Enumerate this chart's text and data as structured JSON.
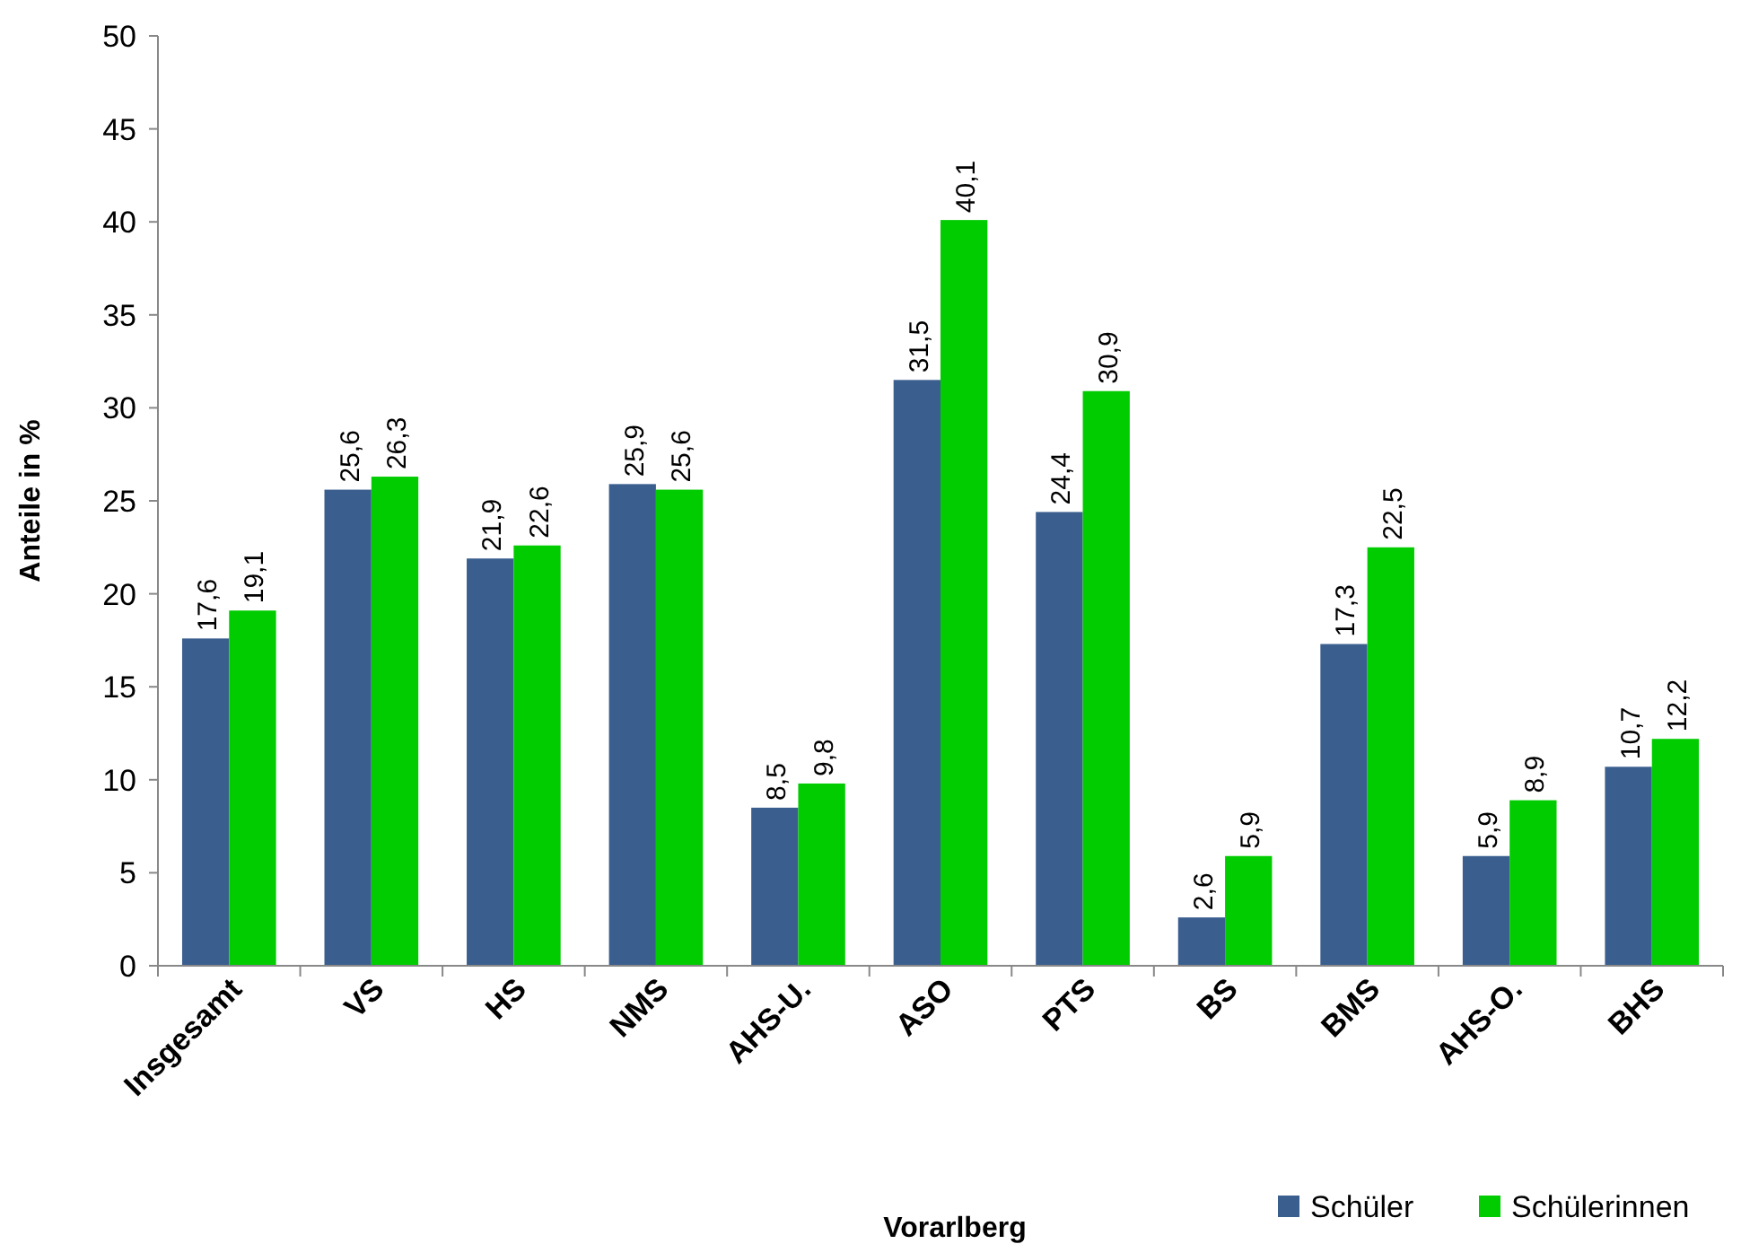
{
  "chart_data": {
    "type": "bar",
    "xlabel": "Vorarlberg",
    "ylabel": "Anteile in %",
    "categories": [
      "Insgesamt",
      "VS",
      "HS",
      "NMS",
      "AHS-U.",
      "ASO",
      "PTS",
      "BS",
      "BMS",
      "AHS-O.",
      "BHS"
    ],
    "series": [
      {
        "name": "Schüler",
        "color": "#3a5f8f",
        "values": [
          17.6,
          25.6,
          21.9,
          25.9,
          8.5,
          31.5,
          24.4,
          2.6,
          17.3,
          5.9,
          10.7
        ],
        "value_labels": [
          "17,6",
          "25,6",
          "21,9",
          "25,9",
          "8,5",
          "31,5",
          "24,4",
          "2,6",
          "17,3",
          "5,9",
          "10,7"
        ]
      },
      {
        "name": "Schülerinnen",
        "color": "#00cc00",
        "values": [
          19.1,
          26.3,
          22.6,
          25.6,
          9.8,
          40.1,
          30.9,
          5.9,
          22.5,
          8.9,
          12.2
        ],
        "value_labels": [
          "19,1",
          "26,3",
          "22,6",
          "25,6",
          "9,8",
          "40,1",
          "30,9",
          "5,9",
          "22,5",
          "8,9",
          "12,2"
        ]
      }
    ],
    "ylim": [
      0,
      50
    ],
    "yticks": [
      0,
      5,
      10,
      15,
      20,
      25,
      30,
      35,
      40,
      45,
      50
    ],
    "legend": "bottom right"
  }
}
